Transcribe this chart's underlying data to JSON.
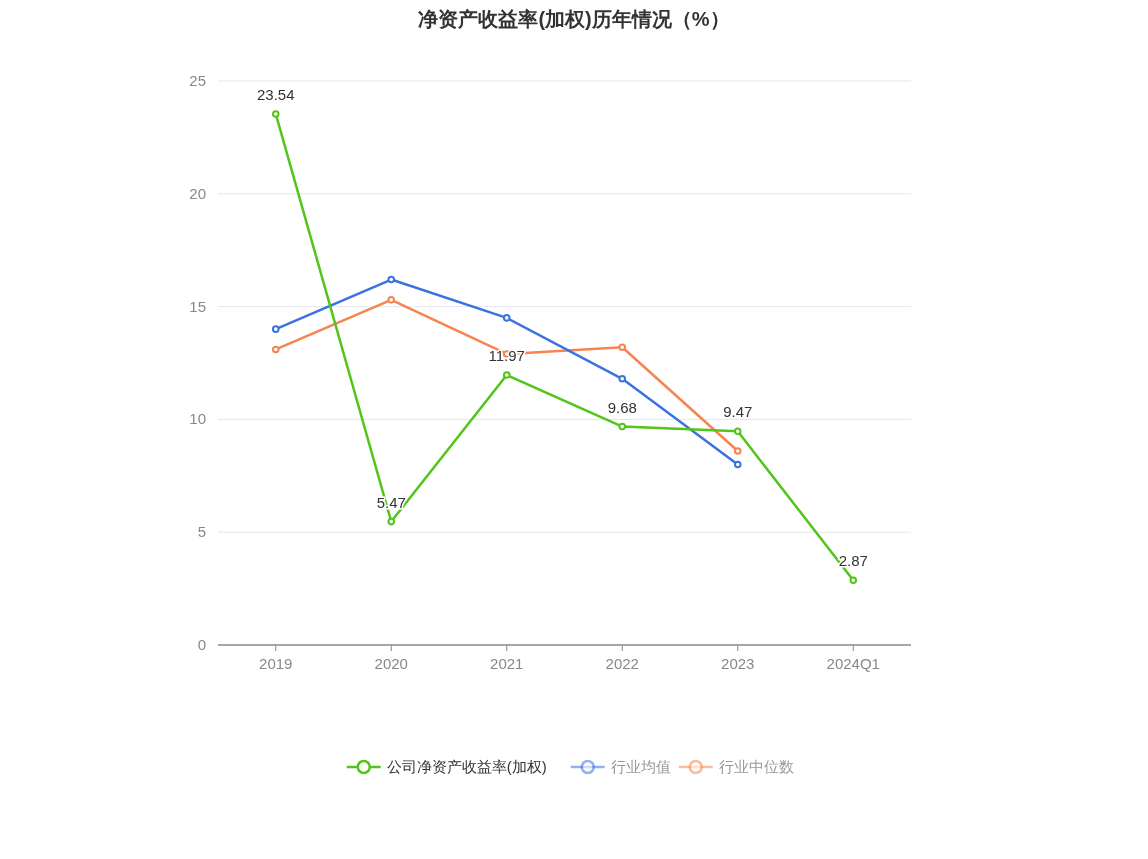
{
  "chart_data": {
    "type": "line",
    "title": "净资产收益率(加权)历年情况（%）",
    "categories": [
      "2019",
      "2020",
      "2021",
      "2022",
      "2023",
      "2024Q1"
    ],
    "series": [
      {
        "name": "公司净资产收益率(加权)",
        "color": "#52c41a",
        "values": [
          23.54,
          5.47,
          11.97,
          9.68,
          9.47,
          2.87
        ],
        "value_labels": [
          "23.54",
          "5.47",
          "11.97",
          "9.68",
          "9.47",
          "2.87"
        ]
      },
      {
        "name": "行业均值",
        "color": "#3a73e0",
        "values": [
          14.0,
          16.2,
          14.5,
          11.8,
          8.0,
          null
        ]
      },
      {
        "name": "行业中位数",
        "color": "#f7844f",
        "values": [
          13.1,
          15.3,
          12.9,
          13.2,
          8.6,
          null
        ]
      }
    ],
    "ylim": [
      0,
      25
    ],
    "yticks": [
      0,
      5,
      10,
      15,
      20,
      25
    ],
    "grid": "y",
    "legend": "bottom",
    "marker": "circle"
  }
}
